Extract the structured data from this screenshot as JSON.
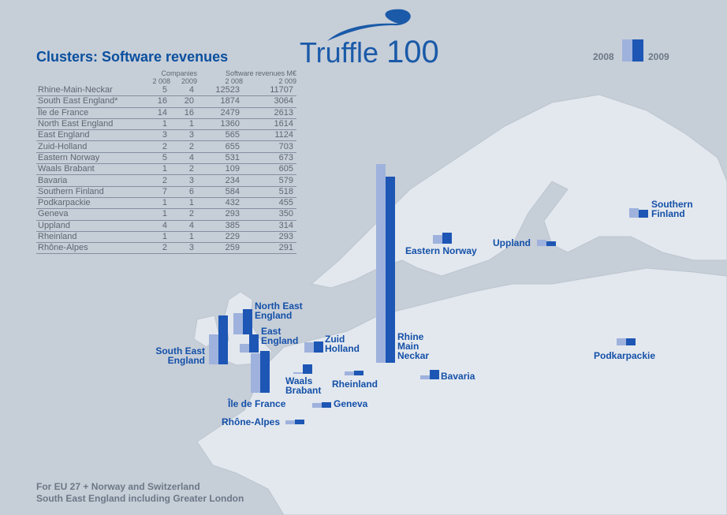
{
  "title": "Clusters: Software revenues",
  "logo": {
    "word": "Truffle",
    "number": "100"
  },
  "legend": {
    "y2008": "2008",
    "y2009": "2009"
  },
  "colors": {
    "bar2008": "#9fb2dd",
    "bar2009": "#1d56b4",
    "title": "#0a4f9e",
    "sea": "#c6ced8",
    "land": "#e3e8ee"
  },
  "table": {
    "group_companies": "Companies",
    "group_revenues": "Software revenues M€",
    "col_2008": "2 008",
    "col_2009": "2009",
    "col_rev_2008": "2 008",
    "col_rev_2009": "2 009",
    "rows": [
      {
        "name": "Rhine-Main-Neckar",
        "c2008": "5",
        "c2009": "4",
        "r2008": "12523",
        "r2009": "11707"
      },
      {
        "name": "South East England*",
        "c2008": "16",
        "c2009": "20",
        "r2008": "1874",
        "r2009": "3064"
      },
      {
        "name": "Île de France",
        "c2008": "14",
        "c2009": "16",
        "r2008": "2479",
        "r2009": "2613"
      },
      {
        "name": "North East England",
        "c2008": "1",
        "c2009": "1",
        "r2008": "1360",
        "r2009": "1614"
      },
      {
        "name": "East England",
        "c2008": "3",
        "c2009": "3",
        "r2008": "565",
        "r2009": "1124"
      },
      {
        "name": "Zuid-Holland",
        "c2008": "2",
        "c2009": "2",
        "r2008": "655",
        "r2009": "703"
      },
      {
        "name": "Eastern Norway",
        "c2008": "5",
        "c2009": "4",
        "r2008": "531",
        "r2009": "673"
      },
      {
        "name": "Waals Brabant",
        "c2008": "1",
        "c2009": "2",
        "r2008": "109",
        "r2009": "605"
      },
      {
        "name": "Bavaria",
        "c2008": "2",
        "c2009": "3",
        "r2008": "234",
        "r2009": "579"
      },
      {
        "name": "Southern Finland",
        "c2008": "7",
        "c2009": "6",
        "r2008": "584",
        "r2009": "518"
      },
      {
        "name": "Podkarpackie",
        "c2008": "1",
        "c2009": "1",
        "r2008": "432",
        "r2009": "455"
      },
      {
        "name": "Geneva",
        "c2008": "1",
        "c2009": "2",
        "r2008": "293",
        "r2009": "350"
      },
      {
        "name": "Uppland",
        "c2008": "4",
        "c2009": "4",
        "r2008": "385",
        "r2009": "314"
      },
      {
        "name": "Rheinland",
        "c2008": "1",
        "c2009": "1",
        "r2008": "229",
        "r2009": "293"
      },
      {
        "name": "Rhône-Alpes",
        "c2008": "2",
        "c2009": "3",
        "r2008": "259",
        "r2009": "291"
      }
    ]
  },
  "map_labels": {
    "rhine": {
      "l1": "Rhine",
      "l2": "Main",
      "l3": "Neckar"
    },
    "se_england": {
      "l1": "South East",
      "l2": "England"
    },
    "ne_england": {
      "l1": "North East",
      "l2": "England"
    },
    "e_england": {
      "l1": "East",
      "l2": "England"
    },
    "zuid": {
      "l1": "Zuid",
      "l2": "Holland"
    },
    "waals": {
      "l1": "Waals",
      "l2": "Brabant"
    },
    "idf": "Île de France",
    "geneva": "Geneva",
    "rhone": "Rhône-Alpes",
    "rheinland": "Rheinland",
    "bavaria": "Bavaria",
    "e_norway": "Eastern Norway",
    "uppland": "Uppland",
    "s_finland": {
      "l1": "Southern",
      "l2": "Finland"
    },
    "podkarpackie": "Podkarpackie"
  },
  "footnotes": {
    "line1": "For EU 27 + Norway and Switzerland",
    "line2": "South East England including Greater London"
  }
}
